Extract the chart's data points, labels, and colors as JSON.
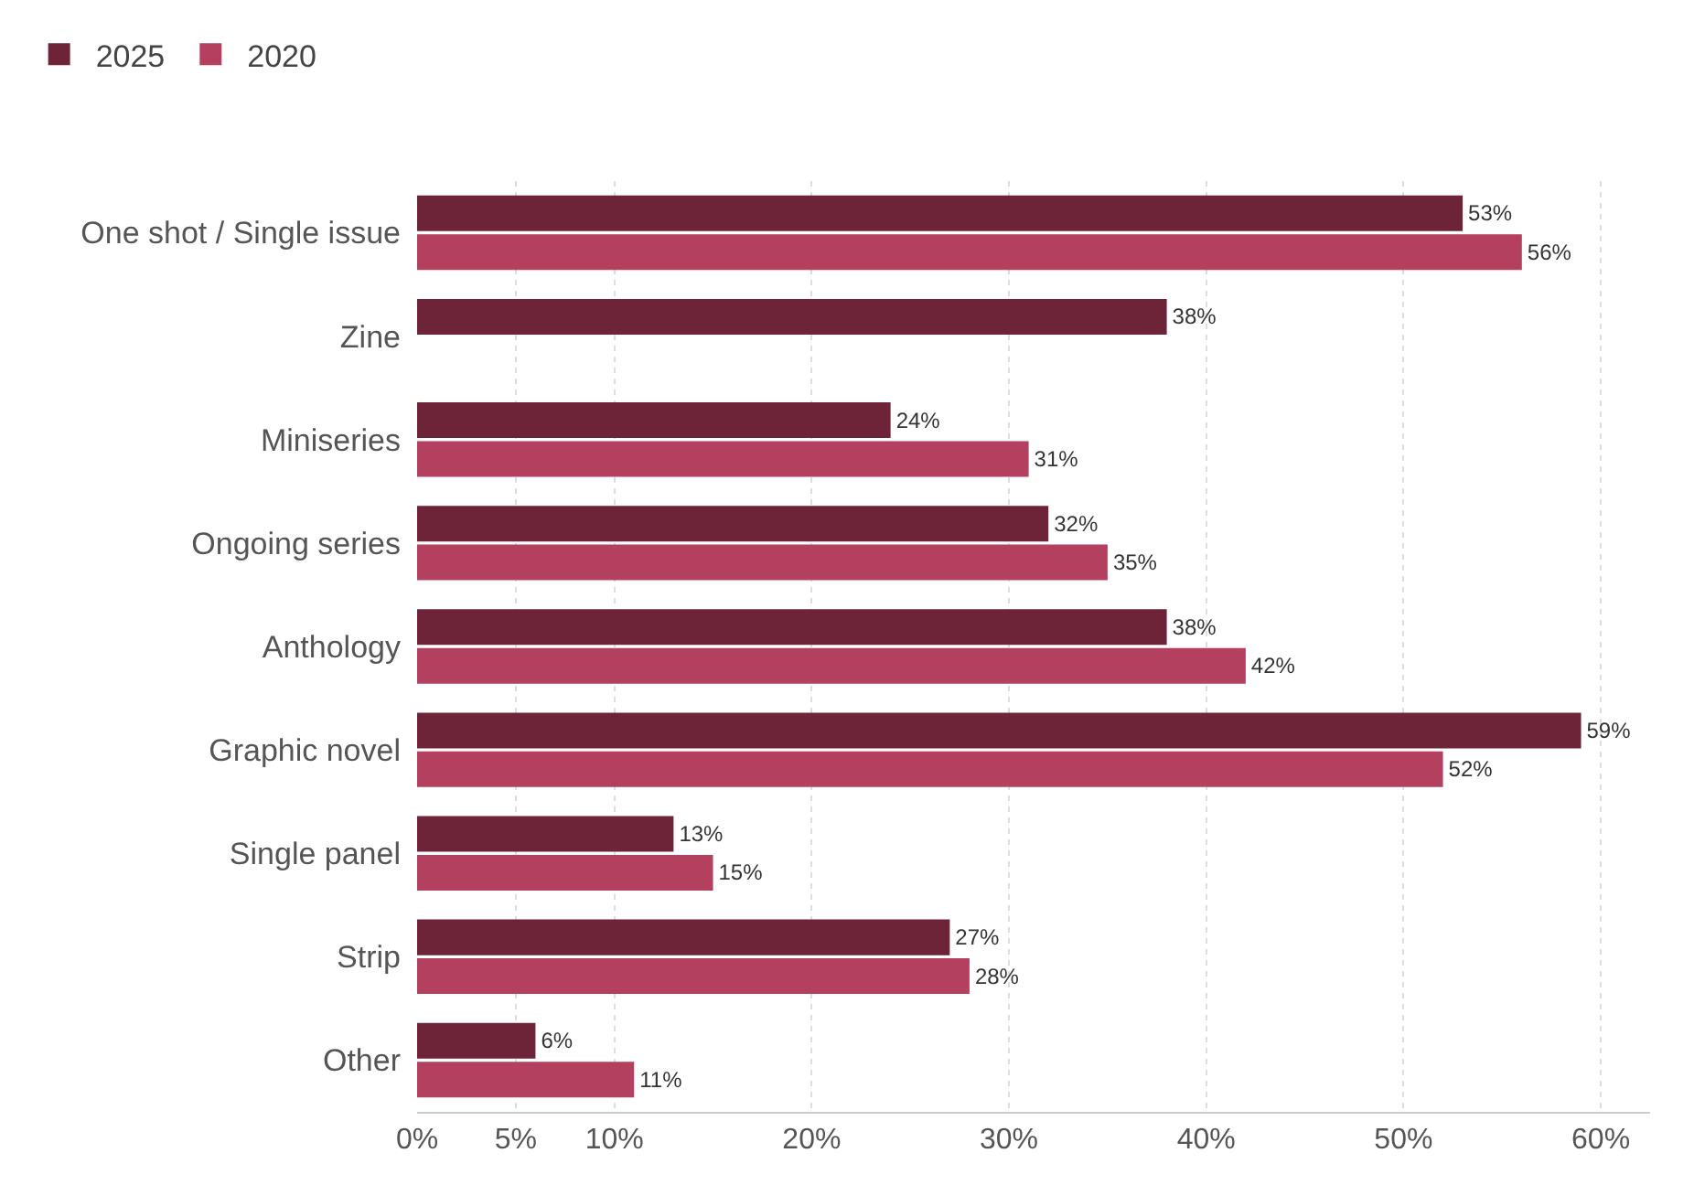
{
  "chart_data": {
    "type": "bar",
    "orientation": "horizontal",
    "categories": [
      "One shot / Single issue",
      "Zine",
      "Miniseries",
      "Ongoing series",
      "Anthology",
      "Graphic novel",
      "Single panel",
      "Strip",
      "Other"
    ],
    "series": [
      {
        "name": "2025",
        "color": "#6e2438",
        "values": [
          53,
          38,
          24,
          32,
          38,
          59,
          13,
          27,
          6
        ],
        "value_labels": [
          "53%",
          "38%",
          "24%",
          "32%",
          "38%",
          "59%",
          "13%",
          "27%",
          "6%"
        ]
      },
      {
        "name": "2020",
        "color": "#b3405f",
        "values": [
          56,
          null,
          31,
          35,
          42,
          52,
          15,
          28,
          11
        ],
        "value_labels": [
          "56%",
          null,
          "31%",
          "35%",
          "42%",
          "52%",
          "15%",
          "28%",
          "11%"
        ]
      }
    ],
    "xlim": [
      0,
      62.5
    ],
    "xticks": [
      {
        "value": 0,
        "label": "0%"
      },
      {
        "value": 5,
        "label": "5%"
      },
      {
        "value": 10,
        "label": "10%"
      },
      {
        "value": 20,
        "label": "20%"
      },
      {
        "value": 30,
        "label": "30%"
      },
      {
        "value": 40,
        "label": "40%"
      },
      {
        "value": 50,
        "label": "50%"
      },
      {
        "value": 60,
        "label": "60%"
      }
    ],
    "grid": "x",
    "legend": "top left"
  }
}
